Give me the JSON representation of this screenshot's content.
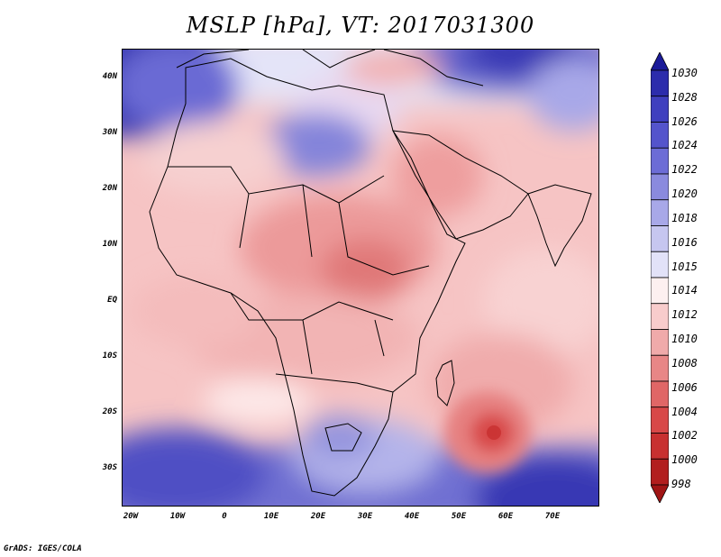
{
  "title": "MSLP [hPa], VT: 2017031300",
  "credit": "GrADS: IGES/COLA",
  "map": {
    "region": "Africa and Middle East",
    "lon_range": [
      -23,
      80
    ],
    "lat_range": [
      -37,
      45
    ],
    "y_ticks": [
      "40N",
      "30N",
      "20N",
      "10N",
      "EQ",
      "10S",
      "20S",
      "30S"
    ],
    "x_ticks": [
      "20W",
      "10W",
      "0",
      "10E",
      "20E",
      "30E",
      "40E",
      "50E",
      "60E",
      "70E"
    ]
  },
  "colorbar": {
    "levels": [
      "1030",
      "1028",
      "1026",
      "1024",
      "1022",
      "1020",
      "1018",
      "1016",
      "1015",
      "1014",
      "1012",
      "1010",
      "1008",
      "1006",
      "1004",
      "1002",
      "1000",
      "998"
    ],
    "colors": [
      "#1b1b99",
      "#2c2cac",
      "#3f3fbf",
      "#5454cc",
      "#6c6cd6",
      "#8a8ade",
      "#a8a8e8",
      "#c6c6f0",
      "#e2e2f8",
      "#fdf0f0",
      "#f8cccc",
      "#f0aaaa",
      "#e88686",
      "#e06666",
      "#d84848",
      "#c83030",
      "#b21e1e",
      "#a01515"
    ]
  }
}
